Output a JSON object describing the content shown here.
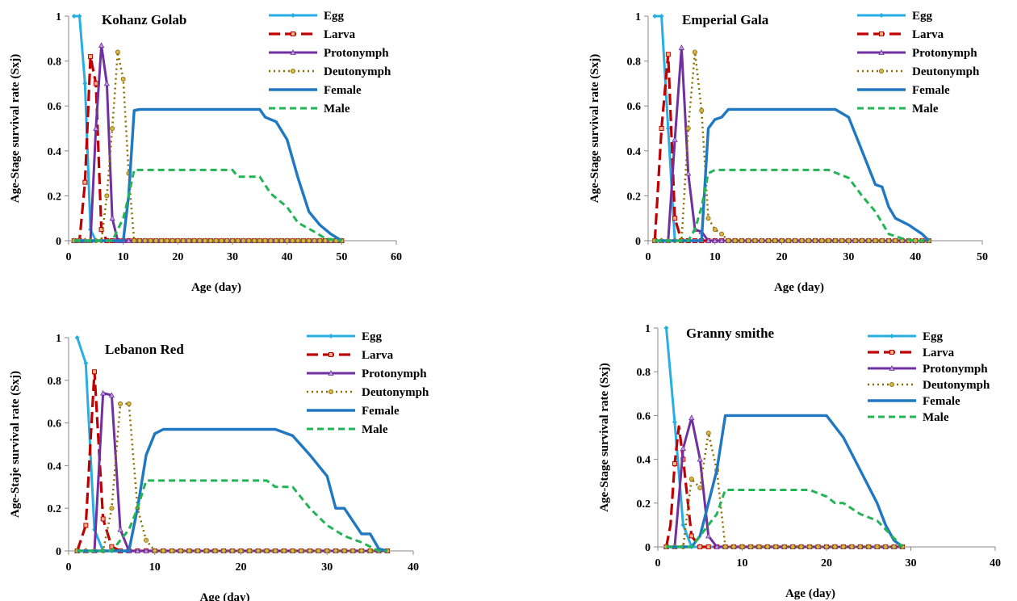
{
  "colors": {
    "Egg": "#27aee3",
    "Larva": "#c00000",
    "Protonymph": "#7030a0",
    "Deutonymph": "#8c6d00",
    "Female": "#1f78c1",
    "Male": "#22b455",
    "axis": "#888888"
  },
  "chart_data": [
    {
      "type": "line",
      "title": "Kohanz Golab",
      "xlabel": "Age (day)",
      "ylabel": "Age-Stage survival rate (Sxj)",
      "xlim": [
        0,
        60
      ],
      "xticks": [
        0,
        10,
        20,
        30,
        40,
        50,
        60
      ],
      "ylim": [
        0,
        1
      ],
      "yticks": [
        0,
        0.2,
        0.4,
        0.6,
        0.8,
        1
      ],
      "ytick_labels": [
        "0",
        "0.2",
        "0.4",
        "0.6",
        "0.8",
        "1"
      ],
      "legend_position": "top-right",
      "series": [
        {
          "name": "Egg",
          "points": [
            [
              1,
              1
            ],
            [
              2,
              1
            ],
            [
              3,
              0.7
            ],
            [
              4,
              0.05
            ],
            [
              5,
              0
            ],
            [
              50,
              0
            ]
          ]
        },
        {
          "name": "Larva",
          "points": [
            [
              1,
              0
            ],
            [
              2,
              0
            ],
            [
              3,
              0.26
            ],
            [
              4,
              0.82
            ],
            [
              5,
              0.7
            ],
            [
              6,
              0.05
            ],
            [
              7,
              0
            ],
            [
              50,
              0
            ]
          ]
        },
        {
          "name": "Protonymph",
          "points": [
            [
              1,
              0
            ],
            [
              4,
              0
            ],
            [
              5,
              0.5
            ],
            [
              6,
              0.87
            ],
            [
              7,
              0.7
            ],
            [
              8,
              0.1
            ],
            [
              9,
              0
            ],
            [
              50,
              0
            ]
          ]
        },
        {
          "name": "Deutonymph",
          "points": [
            [
              1,
              0
            ],
            [
              6,
              0
            ],
            [
              7,
              0.2
            ],
            [
              8,
              0.5
            ],
            [
              9,
              0.84
            ],
            [
              10,
              0.72
            ],
            [
              11,
              0.3
            ],
            [
              12,
              0
            ],
            [
              50,
              0
            ]
          ]
        },
        {
          "name": "Female",
          "points": [
            [
              1,
              0
            ],
            [
              10,
              0
            ],
            [
              11,
              0.2
            ],
            [
              12,
              0.58
            ],
            [
              13,
              0.585
            ],
            [
              35,
              0.585
            ],
            [
              36,
              0.55
            ],
            [
              38,
              0.53
            ],
            [
              40,
              0.45
            ],
            [
              42,
              0.28
            ],
            [
              44,
              0.13
            ],
            [
              46,
              0.07
            ],
            [
              48,
              0.03
            ],
            [
              50,
              0
            ]
          ]
        },
        {
          "name": "Male",
          "points": [
            [
              1,
              0
            ],
            [
              8,
              0
            ],
            [
              9,
              0.05
            ],
            [
              10,
              0.1
            ],
            [
              11,
              0.2
            ],
            [
              12,
              0.315
            ],
            [
              30,
              0.315
            ],
            [
              31,
              0.285
            ],
            [
              35,
              0.285
            ],
            [
              37,
              0.21
            ],
            [
              40,
              0.15
            ],
            [
              42,
              0.08
            ],
            [
              45,
              0.04
            ],
            [
              47,
              0.01
            ],
            [
              50,
              0
            ]
          ]
        }
      ]
    },
    {
      "type": "line",
      "title": "Emperial Gala",
      "xlabel": "Age (day)",
      "ylabel": "Age-Stage survival rate (Sxj)",
      "xlim": [
        0,
        50
      ],
      "xticks": [
        0,
        10,
        20,
        30,
        40,
        50
      ],
      "ylim": [
        0,
        1
      ],
      "yticks": [
        0,
        0.2,
        0.4,
        0.6,
        0.8,
        1
      ],
      "ytick_labels": [
        "0",
        "0.2",
        "0.4",
        "0.6",
        "0.8",
        "1"
      ],
      "legend_position": "top-right",
      "series": [
        {
          "name": "Egg",
          "points": [
            [
              1,
              1
            ],
            [
              2,
              1
            ],
            [
              3,
              0.5
            ],
            [
              4,
              0
            ],
            [
              42,
              0
            ]
          ]
        },
        {
          "name": "Larva",
          "points": [
            [
              1,
              0
            ],
            [
              2,
              0.5
            ],
            [
              3,
              0.83
            ],
            [
              4,
              0.1
            ],
            [
              5,
              0
            ],
            [
              42,
              0
            ]
          ]
        },
        {
          "name": "Protonymph",
          "points": [
            [
              1,
              0
            ],
            [
              3,
              0
            ],
            [
              4,
              0.45
            ],
            [
              5,
              0.86
            ],
            [
              6,
              0.3
            ],
            [
              7,
              0.05
            ],
            [
              8,
              0.04
            ],
            [
              9,
              0
            ],
            [
              42,
              0
            ]
          ]
        },
        {
          "name": "Deutonymph",
          "points": [
            [
              1,
              0
            ],
            [
              5,
              0
            ],
            [
              6,
              0.5
            ],
            [
              7,
              0.84
            ],
            [
              8,
              0.58
            ],
            [
              9,
              0.1
            ],
            [
              10,
              0.05
            ],
            [
              11,
              0.03
            ],
            [
              12,
              0
            ],
            [
              42,
              0
            ]
          ]
        },
        {
          "name": "Female",
          "points": [
            [
              1,
              0
            ],
            [
              8,
              0
            ],
            [
              9,
              0.5
            ],
            [
              10,
              0.54
            ],
            [
              11,
              0.55
            ],
            [
              12,
              0.585
            ],
            [
              28,
              0.585
            ],
            [
              30,
              0.55
            ],
            [
              32,
              0.4
            ],
            [
              34,
              0.25
            ],
            [
              35,
              0.24
            ],
            [
              36,
              0.15
            ],
            [
              37,
              0.1
            ],
            [
              39,
              0.07
            ],
            [
              41,
              0.03
            ],
            [
              42,
              0
            ]
          ]
        },
        {
          "name": "Male",
          "points": [
            [
              1,
              0
            ],
            [
              6,
              0
            ],
            [
              7,
              0.05
            ],
            [
              8,
              0.15
            ],
            [
              9,
              0.3
            ],
            [
              10,
              0.315
            ],
            [
              27,
              0.315
            ],
            [
              30,
              0.28
            ],
            [
              32,
              0.2
            ],
            [
              34,
              0.13
            ],
            [
              36,
              0.03
            ],
            [
              38,
              0.01
            ],
            [
              40,
              0
            ],
            [
              42,
              0
            ]
          ]
        }
      ]
    },
    {
      "type": "line",
      "title": "Lebanon Red",
      "xlabel": "Age (day)",
      "ylabel": "Age-Staje survival rate (Sxj)",
      "xlim": [
        0,
        40
      ],
      "xticks": [
        0,
        10,
        20,
        30,
        40
      ],
      "ylim": [
        0,
        1
      ],
      "yticks": [
        0,
        0.2,
        0.4,
        0.6,
        0.8,
        1
      ],
      "ytick_labels": [
        "0",
        "0.2",
        "0.4",
        "0.6",
        "0.8",
        "1"
      ],
      "legend_position": "top-right",
      "series": [
        {
          "name": "Egg",
          "points": [
            [
              1,
              1
            ],
            [
              2,
              0.88
            ],
            [
              3,
              0.1
            ],
            [
              4,
              0
            ],
            [
              37,
              0
            ]
          ]
        },
        {
          "name": "Larva",
          "points": [
            [
              1,
              0
            ],
            [
              2,
              0.12
            ],
            [
              3,
              0.84
            ],
            [
              4,
              0.15
            ],
            [
              5,
              0.02
            ],
            [
              6,
              0
            ],
            [
              37,
              0
            ]
          ]
        },
        {
          "name": "Protonymph",
          "points": [
            [
              1,
              0
            ],
            [
              3,
              0
            ],
            [
              4,
              0.74
            ],
            [
              5,
              0.73
            ],
            [
              6,
              0.1
            ],
            [
              7,
              0
            ],
            [
              37,
              0
            ]
          ]
        },
        {
          "name": "Deutonymph",
          "points": [
            [
              1,
              0
            ],
            [
              4,
              0
            ],
            [
              5,
              0.2
            ],
            [
              6,
              0.69
            ],
            [
              7,
              0.69
            ],
            [
              8,
              0.2
            ],
            [
              9,
              0.05
            ],
            [
              10,
              0
            ],
            [
              37,
              0
            ]
          ]
        },
        {
          "name": "Female",
          "points": [
            [
              1,
              0
            ],
            [
              7,
              0
            ],
            [
              8,
              0.2
            ],
            [
              9,
              0.45
            ],
            [
              10,
              0.55
            ],
            [
              11,
              0.57
            ],
            [
              24,
              0.57
            ],
            [
              26,
              0.54
            ],
            [
              28,
              0.45
            ],
            [
              30,
              0.35
            ],
            [
              31,
              0.2
            ],
            [
              32,
              0.2
            ],
            [
              34,
              0.08
            ],
            [
              35,
              0.08
            ],
            [
              36,
              0.01
            ],
            [
              37,
              0
            ]
          ]
        },
        {
          "name": "Male",
          "points": [
            [
              1,
              0
            ],
            [
              5,
              0
            ],
            [
              6,
              0.05
            ],
            [
              7,
              0.1
            ],
            [
              8,
              0.2
            ],
            [
              9,
              0.33
            ],
            [
              23,
              0.33
            ],
            [
              24,
              0.3
            ],
            [
              26,
              0.3
            ],
            [
              28,
              0.2
            ],
            [
              30,
              0.12
            ],
            [
              32,
              0.07
            ],
            [
              34,
              0.04
            ],
            [
              36,
              0
            ],
            [
              37,
              0
            ]
          ]
        }
      ]
    },
    {
      "type": "line",
      "title": "Granny smithe",
      "xlabel": "Age (day)",
      "ylabel": "Age-Stage survival rate (Sxj)",
      "xlim": [
        0,
        40
      ],
      "xticks": [
        0,
        10,
        20,
        30,
        40
      ],
      "ylim": [
        0,
        1
      ],
      "yticks": [
        0,
        0.2,
        0.4,
        0.6,
        0.8,
        1
      ],
      "ytick_labels": [
        "0",
        "0.2",
        "0.4",
        "0.6",
        "0.8",
        "1"
      ],
      "legend_position": "top-right",
      "series": [
        {
          "name": "Egg",
          "points": [
            [
              1,
              1
            ],
            [
              2,
              0.57
            ],
            [
              3,
              0.1
            ],
            [
              4,
              0
            ],
            [
              29,
              0
            ]
          ]
        },
        {
          "name": "Larva",
          "points": [
            [
              1,
              0
            ],
            [
              1.5,
              0.1
            ],
            [
              2,
              0.38
            ],
            [
              2.5,
              0.55
            ],
            [
              3,
              0.4
            ],
            [
              4,
              0.05
            ],
            [
              5,
              0
            ],
            [
              29,
              0
            ]
          ]
        },
        {
          "name": "Protonymph",
          "points": [
            [
              1,
              0
            ],
            [
              2,
              0
            ],
            [
              3,
              0.45
            ],
            [
              4,
              0.59
            ],
            [
              5,
              0.4
            ],
            [
              6,
              0.05
            ],
            [
              7,
              0
            ],
            [
              29,
              0
            ]
          ]
        },
        {
          "name": "Deutonymph",
          "points": [
            [
              1,
              0
            ],
            [
              3,
              0
            ],
            [
              4,
              0.31
            ],
            [
              5,
              0.27
            ],
            [
              6,
              0.52
            ],
            [
              7,
              0.35
            ],
            [
              8,
              0
            ],
            [
              29,
              0
            ]
          ]
        },
        {
          "name": "Female",
          "points": [
            [
              1,
              0
            ],
            [
              4,
              0
            ],
            [
              5,
              0.05
            ],
            [
              6,
              0.2
            ],
            [
              7,
              0.35
            ],
            [
              8,
              0.6
            ],
            [
              20,
              0.6
            ],
            [
              22,
              0.5
            ],
            [
              24,
              0.35
            ],
            [
              26,
              0.2
            ],
            [
              27,
              0.1
            ],
            [
              28,
              0.03
            ],
            [
              29,
              0
            ]
          ]
        },
        {
          "name": "Male",
          "points": [
            [
              1,
              0
            ],
            [
              4,
              0
            ],
            [
              5,
              0.05
            ],
            [
              6,
              0.1
            ],
            [
              7,
              0.15
            ],
            [
              8,
              0.26
            ],
            [
              18,
              0.26
            ],
            [
              20,
              0.23
            ],
            [
              21,
              0.2
            ],
            [
              22,
              0.2
            ],
            [
              24,
              0.15
            ],
            [
              26,
              0.12
            ],
            [
              28,
              0.04
            ],
            [
              29,
              0
            ]
          ]
        }
      ]
    }
  ]
}
